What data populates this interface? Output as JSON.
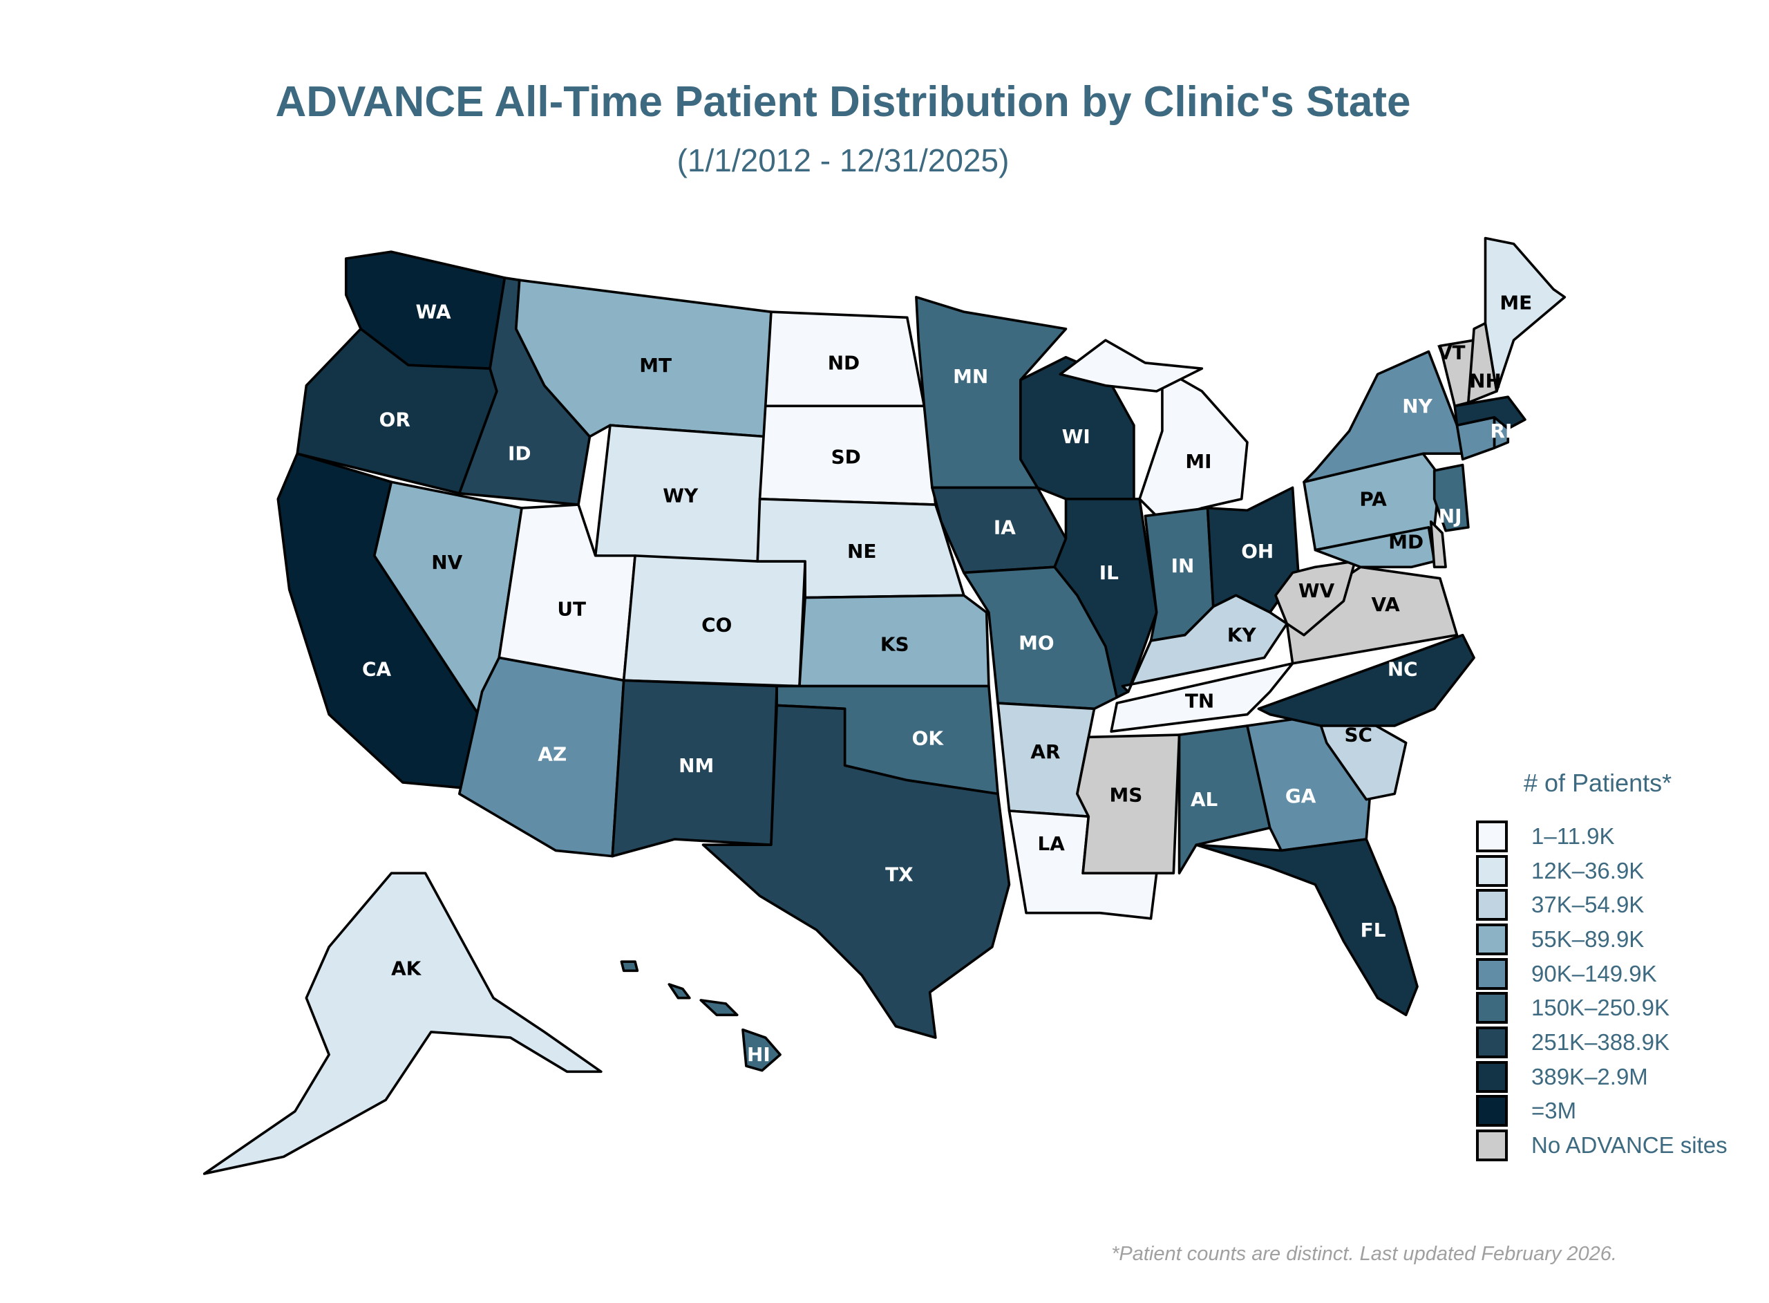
{
  "title": "ADVANCE All-Time Patient Distribution by Clinic's State",
  "subtitle": "(1/1/2012 - 12/31/2025)",
  "footnote": "*Patient counts are distinct. Last updated February 2026.",
  "legend": {
    "title": "# of Patients*",
    "bins": [
      {
        "label": "1–11.9K",
        "color": "#f5f9fd"
      },
      {
        "label": "12K–36.9K",
        "color": "#d9e7f0"
      },
      {
        "label": "37K–54.9K",
        "color": "#c0d5e1"
      },
      {
        "label": "55K–89.9K",
        "color": "#8cb2c5"
      },
      {
        "label": "90K–149.9K",
        "color": "#628da6"
      },
      {
        "label": "150K–250.9K",
        "color": "#3e6a80"
      },
      {
        "label": "251K–388.9K",
        "color": "#23465a"
      },
      {
        "label": "389K–2.9M",
        "color": "#133447"
      },
      {
        "label": "=3M",
        "color": "#032235"
      },
      {
        "label": "No ADVANCE sites",
        "color": "#cccccc"
      }
    ]
  },
  "chart_data": {
    "type": "choropleth",
    "title": "ADVANCE All-Time Patient Distribution by Clinic's State",
    "legend_placement": "bottom-right",
    "states": {
      "WA": "=3M",
      "OR": "389K–2.9M",
      "CA": "=3M",
      "ID": "251K–388.9K",
      "NV": "55K–89.9K",
      "MT": "55K–89.9K",
      "WY": "12K–36.9K",
      "UT": "1–11.9K",
      "CO": "12K–36.9K",
      "AZ": "90K–149.9K",
      "NM": "251K–388.9K",
      "ND": "1–11.9K",
      "SD": "1–11.9K",
      "NE": "12K–36.9K",
      "KS": "55K–89.9K",
      "OK": "150K–250.9K",
      "TX": "251K–388.9K",
      "MN": "150K–250.9K",
      "IA": "251K–388.9K",
      "MO": "150K–250.9K",
      "AR": "37K–54.9K",
      "LA": "1–11.9K",
      "WI": "389K–2.9M",
      "IL": "389K–2.9M",
      "MI": "1–11.9K",
      "IN": "150K–250.9K",
      "OH": "389K–2.9M",
      "KY": "37K–54.9K",
      "TN": "1–11.9K",
      "MS": "No ADVANCE sites",
      "AL": "150K–250.9K",
      "GA": "90K–149.9K",
      "FL": "389K–2.9M",
      "SC": "37K–54.9K",
      "NC": "389K–2.9M",
      "VA": "No ADVANCE sites",
      "WV": "No ADVANCE sites",
      "PA": "55K–89.9K",
      "NY": "90K–149.9K",
      "NJ": "150K–250.9K",
      "DE": "No ADVANCE sites",
      "MD": "55K–89.9K",
      "CT": "90K–149.9K",
      "RI": "90K–149.9K",
      "MA": "389K–2.9M",
      "VT": "No ADVANCE sites",
      "NH": "No ADVANCE sites",
      "ME": "12K–36.9K",
      "AK": "12K–36.9K",
      "HI": "150K–250.9K"
    }
  }
}
